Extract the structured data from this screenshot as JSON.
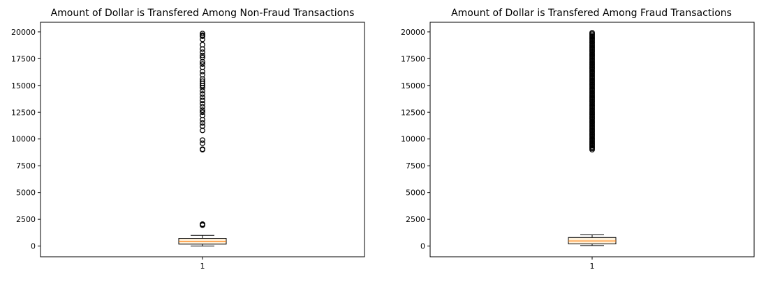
{
  "chart_data": [
    {
      "type": "box",
      "title": "Amount of Dollar is Transfered Among Non-Fraud Transactions",
      "xlabel": "",
      "ylabel": "",
      "ylim": [
        -1000,
        20900
      ],
      "yticks": [
        0,
        2500,
        5000,
        7500,
        10000,
        12500,
        15000,
        17500,
        20000
      ],
      "categories": [
        "1"
      ],
      "box": {
        "whisker_low": 0,
        "q1": 180,
        "median": 420,
        "q3": 720,
        "whisker_high": 1000
      },
      "fliers": [
        1950,
        2000,
        2050,
        9000,
        9050,
        9600,
        9900,
        10800,
        11200,
        11500,
        11800,
        12200,
        12500,
        12700,
        13000,
        13300,
        13600,
        13900,
        14200,
        14500,
        14800,
        15000,
        15200,
        15400,
        15600,
        16000,
        16300,
        16700,
        17000,
        17200,
        17600,
        17800,
        18100,
        18400,
        18800,
        19300,
        19600,
        19700,
        19850
      ],
      "colors": {
        "box": "#000000",
        "median": "#ff7f0e",
        "flier": "#000000"
      }
    },
    {
      "type": "box",
      "title": "Amount of Dollar is Transfered Among Fraud Transactions",
      "xlabel": "",
      "ylabel": "",
      "ylim": [
        -1000,
        20900
      ],
      "yticks": [
        0,
        2500,
        5000,
        7500,
        10000,
        12500,
        15000,
        17500,
        20000
      ],
      "categories": [
        "1"
      ],
      "box": {
        "whisker_low": 50,
        "q1": 200,
        "median": 480,
        "q3": 800,
        "whisker_high": 1050
      },
      "fliers_dense_range": [
        9000,
        20000
      ],
      "colors": {
        "box": "#000000",
        "median": "#ff7f0e",
        "flier": "#000000"
      }
    }
  ]
}
